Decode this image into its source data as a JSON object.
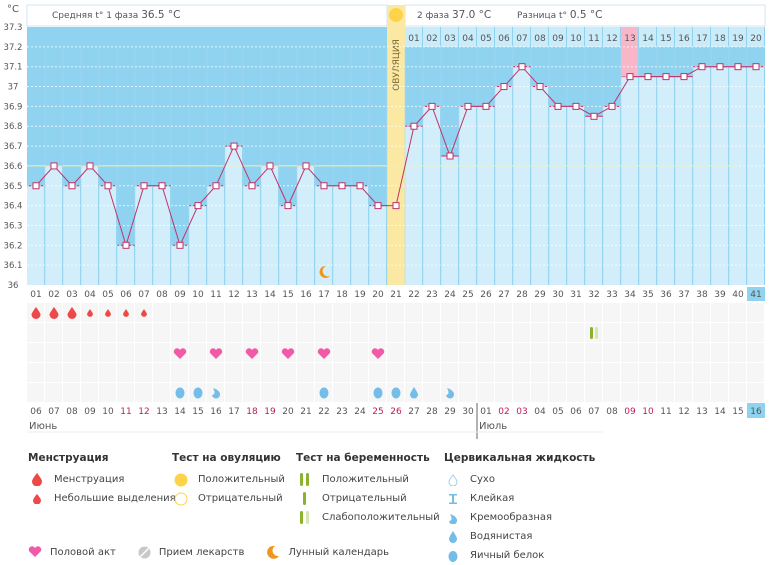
{
  "header": {
    "unit_label": "°C",
    "phase1_label": "Средняя t° 1 фаза",
    "phase1_value": "36.5 °C",
    "phase2_label": "2 фаза",
    "phase2_value": "37.0 °C",
    "diff_label": "Разница t°",
    "diff_value": "0.5 °C",
    "ovulation_label": "ОВУЛЯЦИЯ"
  },
  "chart_data": {
    "type": "line",
    "title": "",
    "xlabel": "",
    "ylabel": "°C",
    "ylim": [
      36.0,
      37.3
    ],
    "yticks": [
      "37.3",
      "37.2",
      "37.1",
      "37",
      "36.9",
      "36.8",
      "36.7",
      "36.6",
      "36.5",
      "36.4",
      "36.3",
      "36.2",
      "36.1",
      "36"
    ],
    "cycle_days": [
      "01",
      "02",
      "03",
      "04",
      "05",
      "06",
      "07",
      "08",
      "09",
      "10",
      "11",
      "12",
      "13",
      "14",
      "15",
      "16",
      "17",
      "18",
      "19",
      "20",
      "21",
      "22",
      "23",
      "24",
      "25",
      "26",
      "27",
      "28",
      "29",
      "30",
      "31",
      "32",
      "33",
      "34",
      "35",
      "36",
      "37",
      "38",
      "39",
      "40",
      "41"
    ],
    "series": [
      {
        "name": "Базальная температура",
        "values": [
          36.5,
          36.6,
          36.5,
          36.6,
          36.5,
          36.2,
          36.5,
          36.5,
          36.2,
          36.4,
          36.5,
          36.7,
          36.5,
          36.6,
          36.4,
          36.6,
          36.5,
          36.5,
          36.5,
          36.4,
          36.4,
          36.8,
          36.9,
          36.65,
          36.9,
          36.9,
          37.0,
          37.1,
          37.0,
          36.9,
          36.9,
          36.85,
          36.9,
          37.05,
          37.05,
          37.05,
          37.05,
          37.1,
          37.1,
          37.1,
          37.1
        ]
      }
    ],
    "coverline": 36.6,
    "ovulation_day": 21,
    "luteal_days": [
      "01",
      "02",
      "03",
      "04",
      "05",
      "06",
      "07",
      "08",
      "09",
      "10",
      "11",
      "12",
      "13",
      "14",
      "15",
      "16",
      "17",
      "18",
      "19",
      "20"
    ],
    "luteal_highlight_day": "13",
    "current_day": "41",
    "moon_day": 17,
    "calendar_dates": [
      "06",
      "07",
      "08",
      "09",
      "10",
      "11",
      "12",
      "13",
      "14",
      "15",
      "16",
      "17",
      "18",
      "19",
      "20",
      "21",
      "22",
      "23",
      "24",
      "25",
      "26",
      "27",
      "28",
      "29",
      "30",
      "01",
      "02",
      "03",
      "04",
      "05",
      "06",
      "07",
      "08",
      "09",
      "10",
      "11",
      "12",
      "13",
      "14",
      "15",
      "16"
    ],
    "weekend_dates_idx": [
      5,
      6,
      12,
      13,
      19,
      20,
      26,
      27,
      33,
      34
    ],
    "months": [
      {
        "label": "Июнь",
        "start_idx": 0
      },
      {
        "label": "Июль",
        "start_idx": 25
      }
    ],
    "grid": true,
    "legend": "bottom",
    "menstruation": {
      "1": "heavy",
      "2": "heavy",
      "3": "heavy",
      "4": "light",
      "5": "light",
      "6": "light",
      "7": "light"
    },
    "pregnancy_test": {
      "32": "weak-positive"
    },
    "intercourse_days": [
      9,
      11,
      13,
      15,
      17,
      20
    ],
    "cervical_fluid": {
      "9": "egg-white",
      "10": "egg-white",
      "11": "creamy",
      "17": "egg-white",
      "20": "egg-white",
      "21": "egg-white",
      "22": "watery",
      "24": "creamy"
    }
  },
  "legend": {
    "menstruation": {
      "title": "Менструация",
      "items": [
        "Менструация",
        "Небольшие выделения"
      ]
    },
    "ovulation_test": {
      "title": "Тест на овуляцию",
      "items": [
        "Положительный",
        "Отрицательный"
      ]
    },
    "pregnancy_test": {
      "title": "Тест на беременность",
      "items": [
        "Положительный",
        "Отрицательный",
        "Слабоположительный"
      ]
    },
    "cervical_fluid": {
      "title": "Цервикальная жидкость",
      "items": [
        "Сухо",
        "Клейкая",
        "Кремообразная",
        "Водянистая",
        "Яичный белок"
      ]
    },
    "other": [
      "Половой акт",
      "Прием лекарств",
      "Лунный календарь"
    ]
  },
  "colors": {
    "plot_bg": "#8fd3f1",
    "bar_fill": "#d3eefb",
    "ovulation": "#fbe9a3",
    "line": "#c0336a",
    "weekend": "#c2185b",
    "menstruation": "#ef4848",
    "heart": "#f15aa8",
    "fluid": "#74bde9",
    "test_green": "#8bb22d",
    "sun": "#fcd34a",
    "moon": "#f0961e"
  }
}
